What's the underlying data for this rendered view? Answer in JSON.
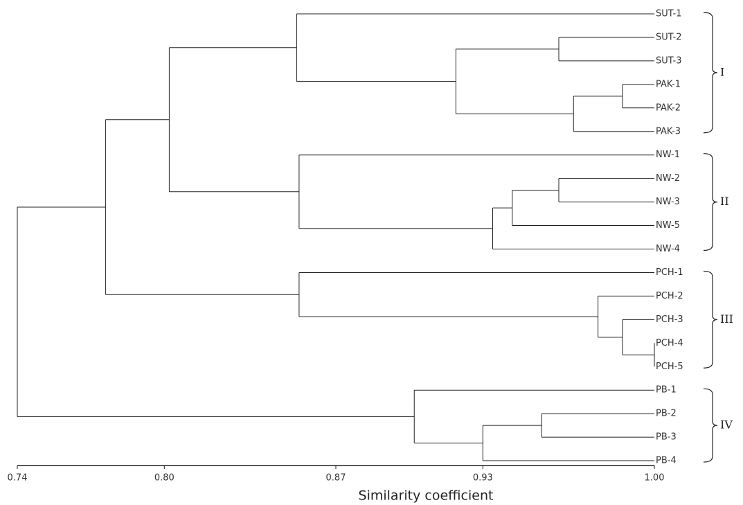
{
  "chart_data": {
    "type": "dendrogram",
    "x_label": "Similarity coefficient",
    "xlim": [
      0.74,
      1.0
    ],
    "xticks": [
      0.74,
      {
        "value": 0.8,
        "label": "0.80"
      },
      0.87,
      0.93,
      {
        "value": 1,
        "label": "1.00"
      }
    ],
    "color": "#222222",
    "tree": {
      "value": 0.74,
      "children": [
        {
          "value": 0.776,
          "children": [
            {
              "value": 0.802,
              "children": [
                {
                  "value": 0.854,
                  "group": "I",
                  "children": [
                    {
                      "label": "SUT-1"
                    },
                    {
                      "value": 0.919,
                      "children": [
                        {
                          "value": 0.961,
                          "children": [
                            {
                              "label": "SUT-2"
                            },
                            {
                              "label": "SUT-3"
                            }
                          ]
                        },
                        {
                          "value": 0.967,
                          "children": [
                            {
                              "value": 0.987,
                              "children": [
                                {
                                  "label": "PAK-1"
                                },
                                {
                                  "label": "PAK-2"
                                }
                              ]
                            },
                            {
                              "label": "PAK-3"
                            }
                          ]
                        }
                      ]
                    }
                  ]
                },
                {
                  "value": 0.855,
                  "group": "II",
                  "children": [
                    {
                      "label": "NW-1"
                    },
                    {
                      "value": 0.934,
                      "children": [
                        {
                          "value": 0.942,
                          "children": [
                            {
                              "value": 0.961,
                              "children": [
                                {
                                  "label": "NW-2"
                                },
                                {
                                  "label": "NW-3"
                                }
                              ]
                            },
                            {
                              "label": "NW-5"
                            }
                          ]
                        },
                        {
                          "label": "NW-4"
                        }
                      ]
                    }
                  ]
                }
              ]
            },
            {
              "value": 0.855,
              "group": "III",
              "children": [
                {
                  "label": "PCH-1"
                },
                {
                  "value": 0.977,
                  "children": [
                    {
                      "label": "PCH-2"
                    },
                    {
                      "value": 0.987,
                      "children": [
                        {
                          "label": "PCH-3"
                        },
                        {
                          "value": 1,
                          "children": [
                            {
                              "label": "PCH-4"
                            },
                            {
                              "label": "PCH-5"
                            }
                          ]
                        }
                      ]
                    }
                  ]
                }
              ]
            }
          ]
        },
        {
          "value": 0.902,
          "group": "IV",
          "children": [
            {
              "label": "PB-1"
            },
            {
              "value": 0.93,
              "children": [
                {
                  "value": 0.954,
                  "children": [
                    {
                      "label": "PB-2"
                    },
                    {
                      "label": "PB-3"
                    }
                  ]
                },
                {
                  "label": "PB-4"
                }
              ]
            }
          ]
        }
      ]
    }
  }
}
